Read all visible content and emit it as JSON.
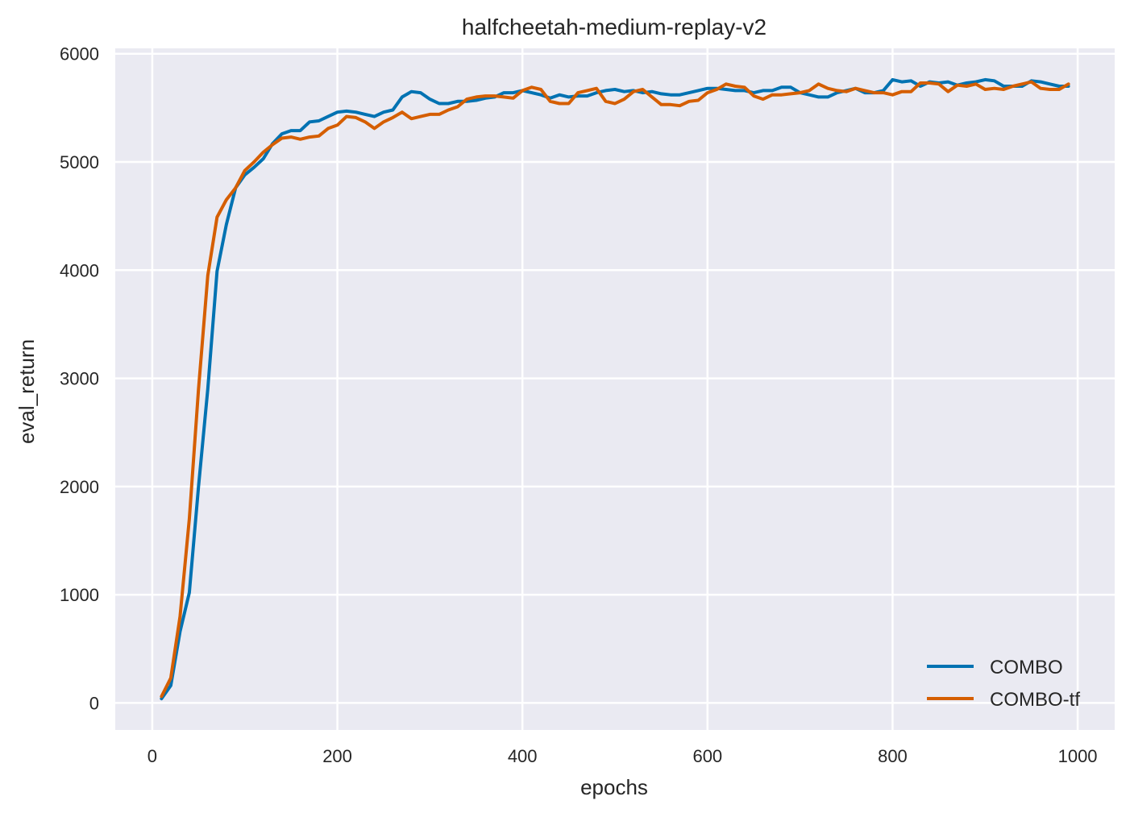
{
  "chart_data": {
    "type": "line",
    "title": "halfcheetah-medium-replay-v2",
    "xlabel": "epochs",
    "ylabel": "eval_return",
    "xlim": [
      -40,
      1040
    ],
    "ylim": [
      -250,
      6050
    ],
    "xticks": [
      0,
      200,
      400,
      600,
      800,
      1000
    ],
    "yticks": [
      0,
      1000,
      2000,
      3000,
      4000,
      5000,
      6000
    ],
    "grid": true,
    "legend_position": "lower-right",
    "x": [
      10,
      20,
      30,
      40,
      50,
      60,
      70,
      80,
      90,
      100,
      110,
      120,
      130,
      140,
      150,
      160,
      170,
      180,
      190,
      200,
      210,
      220,
      230,
      240,
      250,
      260,
      270,
      280,
      290,
      300,
      310,
      320,
      330,
      340,
      350,
      360,
      370,
      380,
      390,
      400,
      410,
      420,
      430,
      440,
      450,
      460,
      470,
      480,
      490,
      500,
      510,
      520,
      530,
      540,
      550,
      560,
      570,
      580,
      590,
      600,
      610,
      620,
      630,
      640,
      650,
      660,
      670,
      680,
      690,
      700,
      710,
      720,
      730,
      740,
      750,
      760,
      770,
      780,
      790,
      800,
      810,
      820,
      830,
      840,
      850,
      860,
      870,
      880,
      890,
      900,
      910,
      920,
      930,
      940,
      950,
      960,
      970,
      980,
      990
    ],
    "series": [
      {
        "name": "COMBO",
        "color": "#0072b2",
        "values": [
          40,
          160,
          660,
          1020,
          2000,
          2900,
          3990,
          4420,
          4760,
          4880,
          4950,
          5030,
          5170,
          5260,
          5290,
          5290,
          5370,
          5380,
          5420,
          5460,
          5470,
          5460,
          5440,
          5420,
          5460,
          5480,
          5600,
          5650,
          5640,
          5580,
          5540,
          5540,
          5560,
          5560,
          5570,
          5590,
          5600,
          5640,
          5640,
          5660,
          5640,
          5620,
          5590,
          5620,
          5600,
          5610,
          5610,
          5640,
          5660,
          5670,
          5650,
          5660,
          5640,
          5650,
          5630,
          5620,
          5620,
          5640,
          5660,
          5680,
          5680,
          5670,
          5660,
          5660,
          5640,
          5660,
          5660,
          5690,
          5690,
          5640,
          5620,
          5600,
          5600,
          5640,
          5660,
          5680,
          5640,
          5640,
          5660,
          5760,
          5740,
          5750,
          5700,
          5740,
          5730,
          5740,
          5710,
          5730,
          5740,
          5760,
          5750,
          5700,
          5700,
          5700,
          5750,
          5740,
          5720,
          5700,
          5700
        ]
      },
      {
        "name": "COMBO-tf",
        "color": "#d55e00",
        "values": [
          60,
          230,
          800,
          1700,
          2900,
          3950,
          4490,
          4650,
          4760,
          4920,
          5000,
          5090,
          5160,
          5220,
          5230,
          5210,
          5230,
          5240,
          5310,
          5340,
          5420,
          5410,
          5370,
          5310,
          5370,
          5410,
          5460,
          5400,
          5420,
          5440,
          5440,
          5480,
          5510,
          5580,
          5600,
          5610,
          5610,
          5600,
          5590,
          5660,
          5690,
          5670,
          5560,
          5540,
          5540,
          5640,
          5660,
          5680,
          5560,
          5540,
          5580,
          5650,
          5670,
          5600,
          5530,
          5530,
          5520,
          5560,
          5570,
          5640,
          5670,
          5720,
          5700,
          5690,
          5610,
          5580,
          5620,
          5620,
          5630,
          5640,
          5660,
          5720,
          5680,
          5660,
          5650,
          5680,
          5660,
          5640,
          5640,
          5620,
          5650,
          5650,
          5730,
          5730,
          5720,
          5650,
          5710,
          5700,
          5720,
          5670,
          5680,
          5670,
          5700,
          5720,
          5740,
          5680,
          5670,
          5670,
          5720
        ]
      }
    ]
  }
}
